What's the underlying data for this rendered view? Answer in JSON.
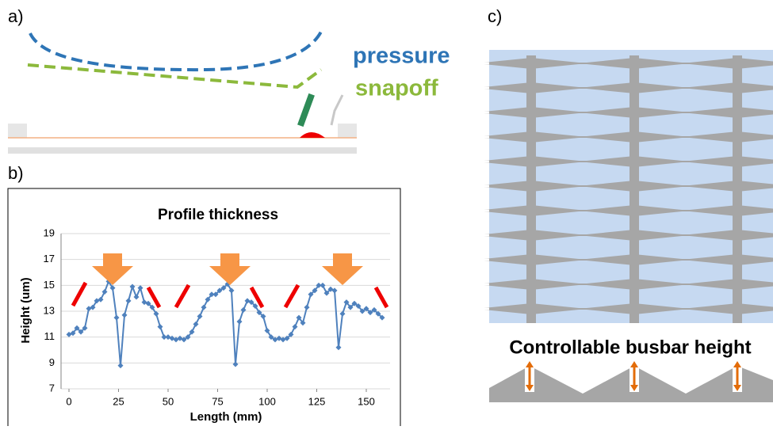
{
  "labels": {
    "a": "a)",
    "b": "b)",
    "c": "c)",
    "pressure": "pressure",
    "snapoff": "snapoff",
    "busbar": "Controllable busbar height"
  },
  "chart_data": {
    "type": "line",
    "title": "Profile thickness",
    "x_label": "Length (mm)",
    "y_label": "Height (um)",
    "xlim": [
      -4,
      162
    ],
    "ylim": [
      7,
      19
    ],
    "xticks": [
      0,
      25,
      50,
      75,
      100,
      125,
      150
    ],
    "yticks": [
      7,
      9,
      11,
      13,
      15,
      17,
      19
    ],
    "grid": true,
    "series": [
      {
        "color": "#4f81bd",
        "x": [
          0,
          2,
          4,
          6,
          8,
          10,
          12,
          14,
          16,
          18,
          20,
          22,
          24,
          26,
          28,
          30,
          32,
          34,
          36,
          38,
          40,
          42,
          44,
          46,
          48,
          50,
          52,
          54,
          56,
          58,
          60,
          62,
          64,
          66,
          68,
          70,
          72,
          74,
          76,
          78,
          80,
          82,
          84,
          86,
          88,
          90,
          92,
          94,
          96,
          98,
          100,
          102,
          104,
          106,
          108,
          110,
          112,
          114,
          116,
          118,
          120,
          122,
          124,
          126,
          128,
          130,
          132,
          134,
          136,
          138,
          140,
          142,
          144,
          146,
          148,
          150,
          152,
          154,
          156,
          158
        ],
        "values": [
          11.2,
          11.3,
          11.7,
          11.4,
          11.7,
          13.2,
          13.3,
          13.8,
          13.9,
          14.5,
          15.3,
          14.8,
          12.5,
          8.8,
          12.7,
          13.8,
          14.9,
          14.1,
          14.8,
          13.7,
          13.6,
          13.3,
          12.8,
          11.8,
          11.0,
          11.0,
          10.9,
          10.8,
          10.9,
          10.8,
          11.0,
          11.4,
          12.0,
          12.6,
          13.3,
          13.9,
          14.3,
          14.3,
          14.6,
          14.8,
          15.1,
          14.6,
          8.9,
          12.2,
          13.1,
          13.8,
          13.7,
          13.4,
          12.9,
          12.6,
          11.5,
          11.0,
          10.8,
          10.9,
          10.8,
          10.9,
          11.2,
          11.8,
          12.5,
          12.1,
          13.3,
          14.3,
          14.6,
          15.0,
          15.0,
          14.4,
          14.7,
          14.6,
          10.2,
          12.8,
          13.7,
          13.3,
          13.6,
          13.4,
          13.0,
          13.2,
          12.9,
          13.1,
          12.8,
          12.5
        ]
      }
    ]
  }
}
